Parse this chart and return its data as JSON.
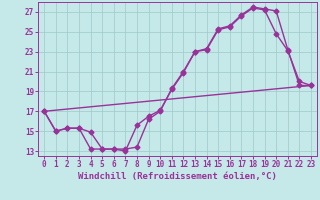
{
  "xlabel": "Windchill (Refroidissement éolien,°C)",
  "xlim": [
    -0.5,
    23.5
  ],
  "ylim": [
    12.5,
    28
  ],
  "xticks": [
    0,
    1,
    2,
    3,
    4,
    5,
    6,
    7,
    8,
    9,
    10,
    11,
    12,
    13,
    14,
    15,
    16,
    17,
    18,
    19,
    20,
    21,
    22,
    23
  ],
  "yticks": [
    13,
    15,
    17,
    19,
    21,
    23,
    25,
    27
  ],
  "background_color": "#c5e8e8",
  "line_color": "#993399",
  "grid_color": "#9fc9c9",
  "line1_x": [
    0,
    1,
    2,
    3,
    4,
    5,
    6,
    7,
    8,
    9,
    10,
    11,
    12,
    13,
    14,
    15,
    16,
    17,
    18,
    19,
    20,
    21,
    22,
    23
  ],
  "line1_y": [
    17.0,
    15.0,
    15.3,
    15.3,
    13.2,
    13.2,
    13.2,
    13.2,
    13.4,
    16.2,
    17.0,
    19.3,
    21.0,
    23.0,
    23.3,
    25.3,
    25.6,
    26.7,
    27.5,
    27.3,
    27.1,
    23.2,
    19.6,
    19.6
  ],
  "line2_x": [
    0,
    1,
    2,
    3,
    4,
    5,
    6,
    7,
    8,
    9,
    10,
    11,
    12,
    13,
    14,
    15,
    16,
    17,
    18,
    19,
    20,
    21,
    22,
    23
  ],
  "line2_y": [
    17.0,
    15.0,
    15.3,
    15.3,
    14.9,
    13.2,
    13.2,
    13.0,
    15.6,
    16.5,
    17.1,
    19.2,
    20.9,
    23.0,
    23.2,
    25.2,
    25.5,
    26.6,
    27.4,
    27.2,
    24.8,
    23.1,
    20.0,
    19.6
  ],
  "line3_x": [
    0,
    23
  ],
  "line3_y": [
    17.0,
    19.6
  ],
  "marker": "D",
  "markersize": 2.5,
  "linewidth": 1.0,
  "tick_fontsize": 5.5,
  "label_fontsize": 6.5
}
